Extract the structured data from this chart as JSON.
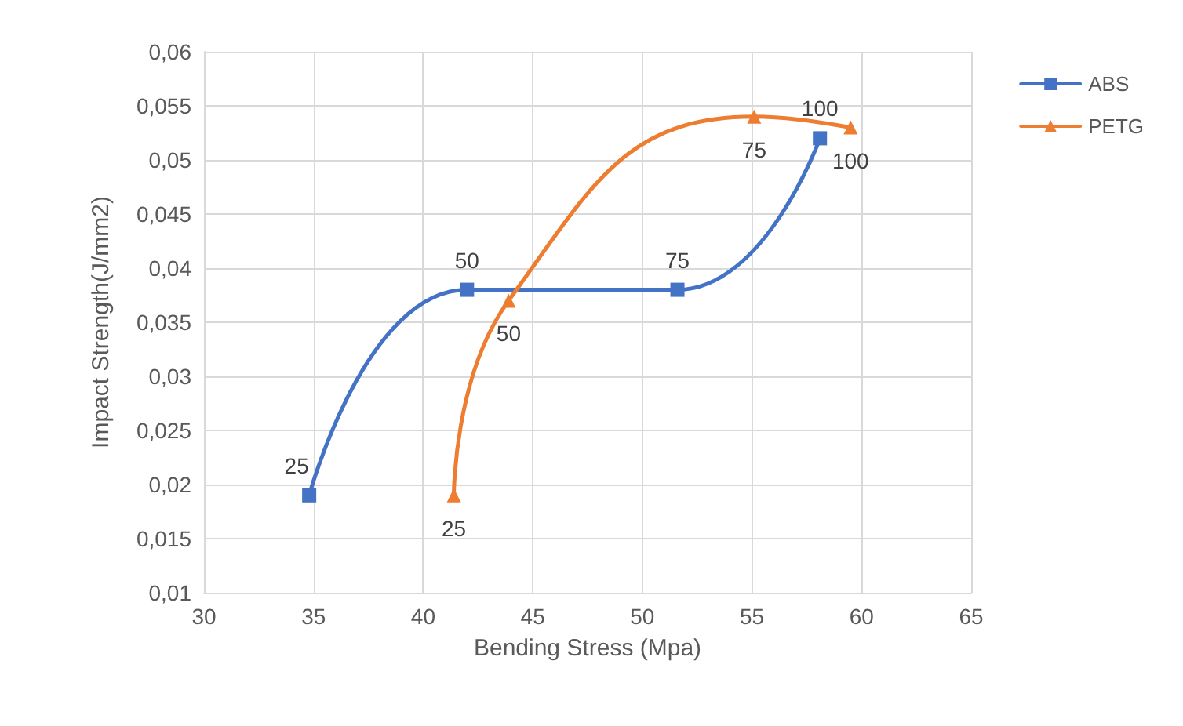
{
  "chart_data": {
    "type": "line",
    "xlabel": "Bending Stress (Mpa)",
    "ylabel": "Impact Strength(J/mm2)",
    "xlim": [
      30,
      65
    ],
    "xticks": [
      30,
      35,
      40,
      45,
      50,
      55,
      60,
      65
    ],
    "ylim": [
      0.01,
      0.06
    ],
    "yticks": [
      {
        "value": 0.01,
        "label": "0,01"
      },
      {
        "value": 0.015,
        "label": "0,015"
      },
      {
        "value": 0.02,
        "label": "0,02"
      },
      {
        "value": 0.025,
        "label": "0,025"
      },
      {
        "value": 0.03,
        "label": "0,03"
      },
      {
        "value": 0.035,
        "label": "0,035"
      },
      {
        "value": 0.04,
        "label": "0,04"
      },
      {
        "value": 0.045,
        "label": "0,045"
      },
      {
        "value": 0.05,
        "label": "0,05"
      },
      {
        "value": 0.055,
        "label": "0,055"
      },
      {
        "value": 0.06,
        "label": "0,06"
      }
    ],
    "grid": true,
    "legend": "right",
    "annotations": [
      {
        "text": "25",
        "x": 34.8,
        "y": 0.019
      },
      {
        "text": "50",
        "x": 42,
        "y": 0.038
      },
      {
        "text": "75",
        "x": 51.6,
        "y": 0.038
      },
      {
        "text": "100",
        "x": 58.1,
        "y": 0.052
      },
      {
        "text": "25",
        "x": 41.4,
        "y": 0.019
      },
      {
        "text": "50",
        "x": 43.9,
        "y": 0.037
      },
      {
        "text": "75",
        "x": 55.1,
        "y": 0.054
      },
      {
        "text": "100",
        "x": 59.5,
        "y": 0.053
      }
    ],
    "series": [
      {
        "name": "ABS",
        "color": "#4472c4",
        "marker": "square",
        "x": [
          34.8,
          42,
          51.6,
          58.1
        ],
        "values": [
          0.019,
          0.038,
          0.038,
          0.052
        ]
      },
      {
        "name": "PETG",
        "color": "#ed7d31",
        "marker": "triangle",
        "x": [
          41.4,
          43.9,
          55.1,
          59.5
        ],
        "values": [
          0.019,
          0.037,
          0.054,
          0.053
        ]
      }
    ]
  }
}
